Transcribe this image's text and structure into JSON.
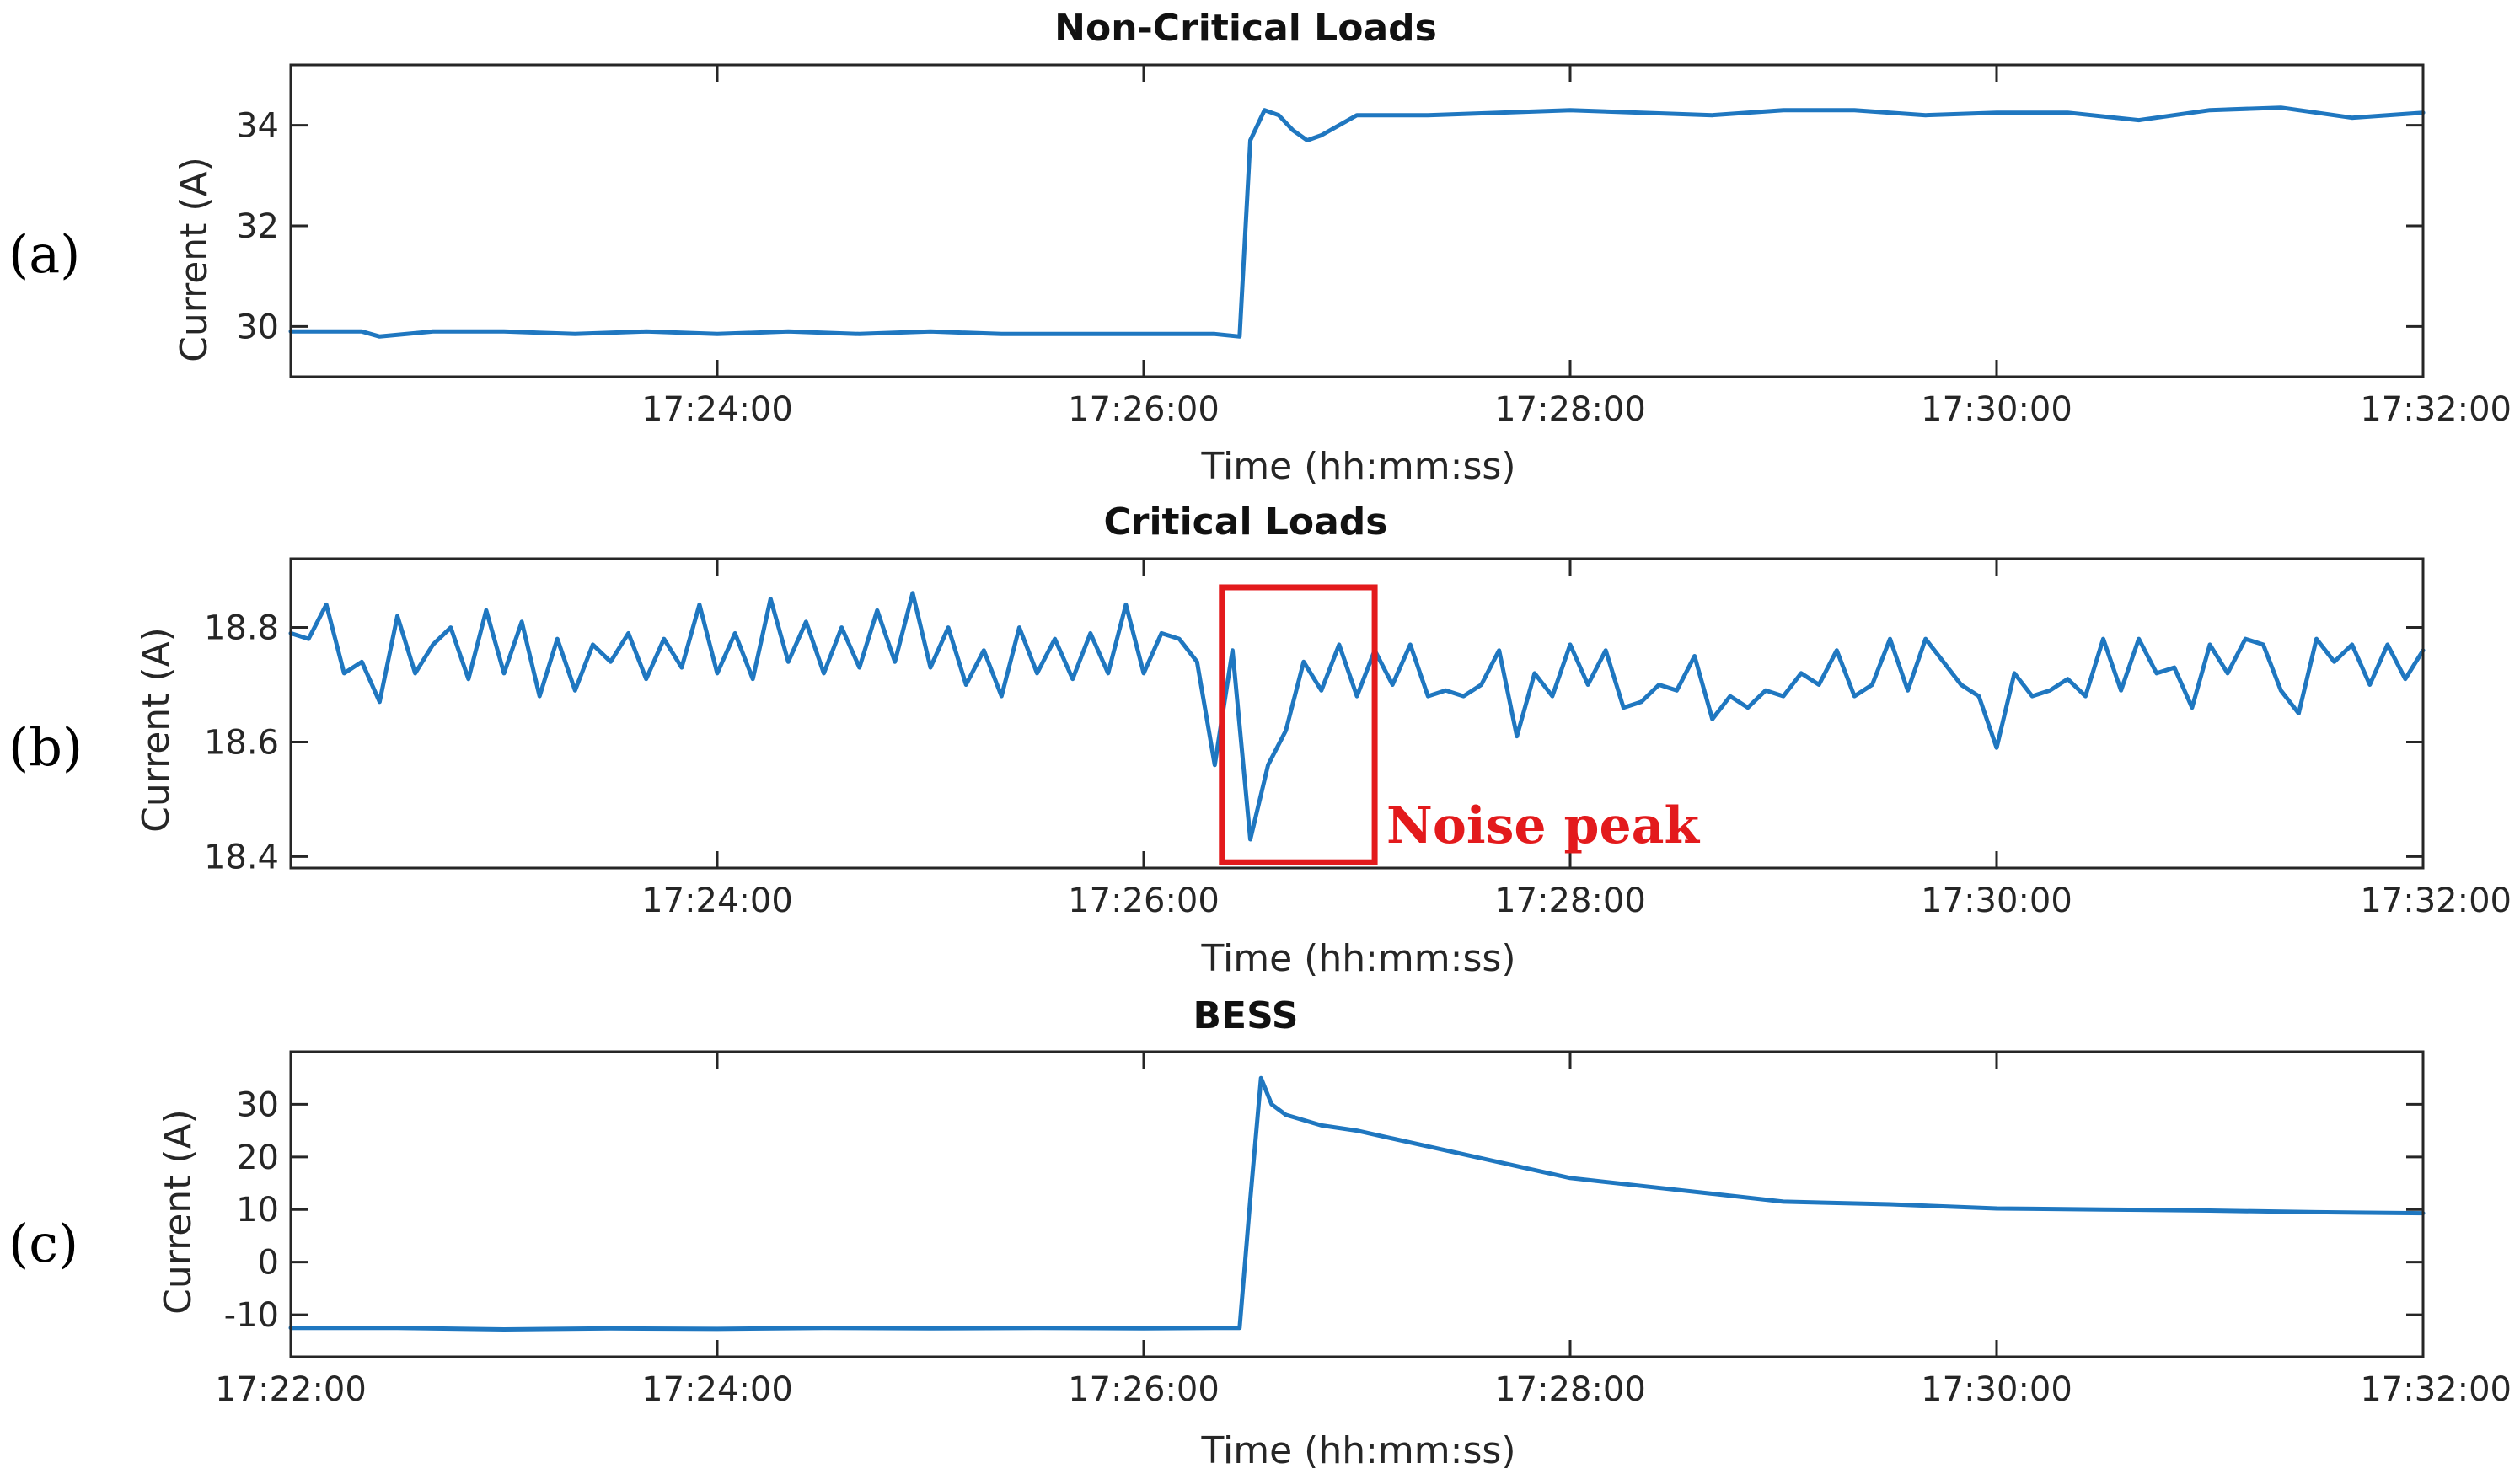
{
  "chart_data": [
    {
      "type": "line",
      "panel_label": "(a)",
      "title": "Non-Critical Loads",
      "xlabel": "Time (hh:mm:ss)",
      "ylabel": "Current (A)",
      "xlim": [
        "17:22:00",
        "17:32:00"
      ],
      "ylim": [
        29,
        35.2
      ],
      "x_ticks": [
        "17:24:00",
        "17:26:00",
        "17:28:00",
        "17:30:00",
        "17:32:00"
      ],
      "y_ticks": [
        30,
        32,
        34
      ],
      "y_tick_labels": [
        "30",
        "32",
        "34"
      ],
      "grid": false,
      "series": [
        {
          "color": "#1f77c0",
          "x": [
            "17:22:00",
            "17:22:20",
            "17:22:25",
            "17:22:40",
            "17:23:00",
            "17:23:20",
            "17:23:40",
            "17:24:00",
            "17:24:20",
            "17:24:40",
            "17:25:00",
            "17:25:20",
            "17:25:40",
            "17:26:00",
            "17:26:20",
            "17:26:27",
            "17:26:30",
            "17:26:34",
            "17:26:38",
            "17:26:42",
            "17:26:46",
            "17:26:50",
            "17:26:55",
            "17:27:00",
            "17:27:20",
            "17:27:40",
            "17:28:00",
            "17:28:20",
            "17:28:40",
            "17:29:00",
            "17:29:20",
            "17:29:40",
            "17:30:00",
            "17:30:20",
            "17:30:40",
            "17:31:00",
            "17:31:20",
            "17:31:40",
            "17:32:00"
          ],
          "y": [
            29.9,
            29.9,
            29.8,
            29.9,
            29.9,
            29.85,
            29.9,
            29.85,
            29.9,
            29.85,
            29.9,
            29.85,
            29.85,
            29.85,
            29.85,
            29.8,
            33.7,
            34.3,
            34.2,
            33.9,
            33.7,
            33.8,
            34.0,
            34.2,
            34.2,
            34.25,
            34.3,
            34.25,
            34.2,
            34.3,
            34.3,
            34.2,
            34.25,
            34.25,
            34.1,
            34.3,
            34.35,
            34.15,
            34.25
          ]
        }
      ]
    },
    {
      "type": "line",
      "panel_label": "(b)",
      "title": "Critical Loads",
      "xlabel": "Time (hh:mm:ss)",
      "ylabel": "Current (A)",
      "xlim": [
        "17:22:00",
        "17:32:00"
      ],
      "ylim": [
        18.38,
        18.92
      ],
      "x_ticks": [
        "17:24:00",
        "17:26:00",
        "17:28:00",
        "17:30:00",
        "17:32:00"
      ],
      "y_ticks": [
        18.4,
        18.6,
        18.8
      ],
      "y_tick_labels": [
        "18.4",
        "18.6",
        "18.8"
      ],
      "grid": false,
      "annotation": {
        "text": "Noise peak",
        "box_x": [
          "17:26:22",
          "17:27:05"
        ],
        "box_y": [
          18.39,
          18.87
        ],
        "color": "#e31a1c"
      },
      "series": [
        {
          "color": "#1f77c0",
          "x": [
            "17:22:00",
            "17:22:05",
            "17:22:10",
            "17:22:15",
            "17:22:20",
            "17:22:25",
            "17:22:30",
            "17:22:35",
            "17:22:40",
            "17:22:45",
            "17:22:50",
            "17:22:55",
            "17:23:00",
            "17:23:05",
            "17:23:10",
            "17:23:15",
            "17:23:20",
            "17:23:25",
            "17:23:30",
            "17:23:35",
            "17:23:40",
            "17:23:45",
            "17:23:50",
            "17:23:55",
            "17:24:00",
            "17:24:05",
            "17:24:10",
            "17:24:15",
            "17:24:20",
            "17:24:25",
            "17:24:30",
            "17:24:35",
            "17:24:40",
            "17:24:45",
            "17:24:50",
            "17:24:55",
            "17:25:00",
            "17:25:05",
            "17:25:10",
            "17:25:15",
            "17:25:20",
            "17:25:25",
            "17:25:30",
            "17:25:35",
            "17:25:40",
            "17:25:45",
            "17:25:50",
            "17:25:55",
            "17:26:00",
            "17:26:05",
            "17:26:10",
            "17:26:15",
            "17:26:20",
            "17:26:25",
            "17:26:30",
            "17:26:35",
            "17:26:40",
            "17:26:45",
            "17:26:50",
            "17:26:55",
            "17:27:00",
            "17:27:05",
            "17:27:10",
            "17:27:15",
            "17:27:20",
            "17:27:25",
            "17:27:30",
            "17:27:35",
            "17:27:40",
            "17:27:45",
            "17:27:50",
            "17:27:55",
            "17:28:00",
            "17:28:05",
            "17:28:10",
            "17:28:15",
            "17:28:20",
            "17:28:25",
            "17:28:30",
            "17:28:35",
            "17:28:40",
            "17:28:45",
            "17:28:50",
            "17:28:55",
            "17:29:00",
            "17:29:05",
            "17:29:10",
            "17:29:15",
            "17:29:20",
            "17:29:25",
            "17:29:30",
            "17:29:35",
            "17:29:40",
            "17:29:45",
            "17:29:50",
            "17:29:55",
            "17:30:00",
            "17:30:05",
            "17:30:10",
            "17:30:15",
            "17:30:20",
            "17:30:25",
            "17:30:30",
            "17:30:35",
            "17:30:40",
            "17:30:45",
            "17:30:50",
            "17:30:55",
            "17:31:00",
            "17:31:05",
            "17:31:10",
            "17:31:15",
            "17:31:20",
            "17:31:25",
            "17:31:30",
            "17:31:35",
            "17:31:40",
            "17:31:45",
            "17:31:50",
            "17:31:55",
            "17:32:00"
          ],
          "y": [
            18.79,
            18.78,
            18.84,
            18.72,
            18.74,
            18.67,
            18.82,
            18.72,
            18.77,
            18.8,
            18.71,
            18.83,
            18.72,
            18.81,
            18.68,
            18.78,
            18.69,
            18.77,
            18.74,
            18.79,
            18.71,
            18.78,
            18.73,
            18.84,
            18.72,
            18.79,
            18.71,
            18.85,
            18.74,
            18.81,
            18.72,
            18.8,
            18.73,
            18.83,
            18.74,
            18.86,
            18.73,
            18.8,
            18.7,
            18.76,
            18.68,
            18.8,
            18.72,
            18.78,
            18.71,
            18.79,
            18.72,
            18.84,
            18.72,
            18.79,
            18.78,
            18.74,
            18.56,
            18.76,
            18.43,
            18.56,
            18.62,
            18.74,
            18.69,
            18.77,
            18.68,
            18.76,
            18.7,
            18.77,
            18.68,
            18.69,
            18.68,
            18.7,
            18.76,
            18.61,
            18.72,
            18.68,
            18.77,
            18.7,
            18.76,
            18.66,
            18.67,
            18.7,
            18.69,
            18.75,
            18.64,
            18.68,
            18.66,
            18.69,
            18.68,
            18.72,
            18.7,
            18.76,
            18.68,
            18.7,
            18.78,
            18.69,
            18.78,
            18.74,
            18.7,
            18.68,
            18.59,
            18.72,
            18.68,
            18.69,
            18.71,
            18.68,
            18.78,
            18.69,
            18.78,
            18.72,
            18.73,
            18.66,
            18.77,
            18.72,
            18.78,
            18.77,
            18.69,
            18.65,
            18.78,
            18.74,
            18.77,
            18.7,
            18.77,
            18.71,
            18.76
          ]
        }
      ]
    },
    {
      "type": "line",
      "panel_label": "(c)",
      "title": "BESS",
      "xlabel": "Time (hh:mm:ss)",
      "ylabel": "Current (A)",
      "xlim": [
        "17:22:00",
        "17:32:00"
      ],
      "ylim": [
        -18,
        40
      ],
      "x_ticks": [
        "17:22:00",
        "17:24:00",
        "17:26:00",
        "17:28:00",
        "17:30:00",
        "17:32:00"
      ],
      "y_ticks": [
        -10,
        0,
        10,
        20,
        30
      ],
      "y_tick_labels": [
        "-10",
        "0",
        "10",
        "20",
        "30"
      ],
      "grid": false,
      "series": [
        {
          "color": "#1f77c0",
          "x": [
            "17:22:00",
            "17:22:30",
            "17:23:00",
            "17:23:30",
            "17:24:00",
            "17:24:30",
            "17:25:00",
            "17:25:30",
            "17:26:00",
            "17:26:20",
            "17:26:27",
            "17:26:30",
            "17:26:33",
            "17:26:36",
            "17:26:40",
            "17:26:50",
            "17:27:00",
            "17:27:10",
            "17:27:20",
            "17:27:30",
            "17:27:40",
            "17:28:00",
            "17:28:20",
            "17:28:40",
            "17:29:00",
            "17:29:30",
            "17:30:00",
            "17:30:30",
            "17:31:00",
            "17:31:30",
            "17:32:00"
          ],
          "y": [
            -12.5,
            -12.5,
            -12.8,
            -12.6,
            -12.7,
            -12.5,
            -12.6,
            -12.5,
            -12.6,
            -12.5,
            -12.5,
            12,
            35,
            30,
            28,
            26,
            25,
            23.5,
            22,
            20.5,
            19,
            16,
            14.5,
            13,
            11.5,
            11,
            10.2,
            10,
            9.8,
            9.5,
            9.3
          ]
        }
      ]
    }
  ]
}
